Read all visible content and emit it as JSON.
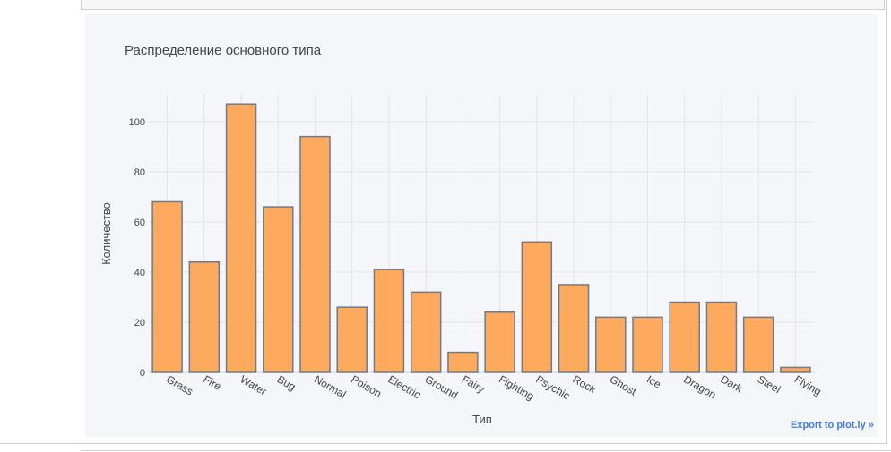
{
  "chart_data": {
    "type": "bar",
    "title": "Распределение основного типа",
    "xlabel": "Тип",
    "ylabel": "Количество",
    "categories": [
      "Grass",
      "Fire",
      "Water",
      "Bug",
      "Normal",
      "Poison",
      "Electric",
      "Ground",
      "Fairy",
      "Fighting",
      "Psychic",
      "Rock",
      "Ghost",
      "Ice",
      "Dragon",
      "Dark",
      "Steel",
      "Flying"
    ],
    "values": [
      68,
      44,
      107,
      66,
      94,
      26,
      41,
      32,
      8,
      24,
      52,
      35,
      22,
      22,
      28,
      28,
      22,
      2
    ],
    "ylim": [
      0,
      111
    ],
    "yticks": [
      0,
      20,
      40,
      60,
      80,
      100
    ],
    "grid": true,
    "bar_color": "#fdaa5f",
    "bar_edge_color": "#6f7a8c"
  },
  "export_label": "Export to plot.ly »"
}
